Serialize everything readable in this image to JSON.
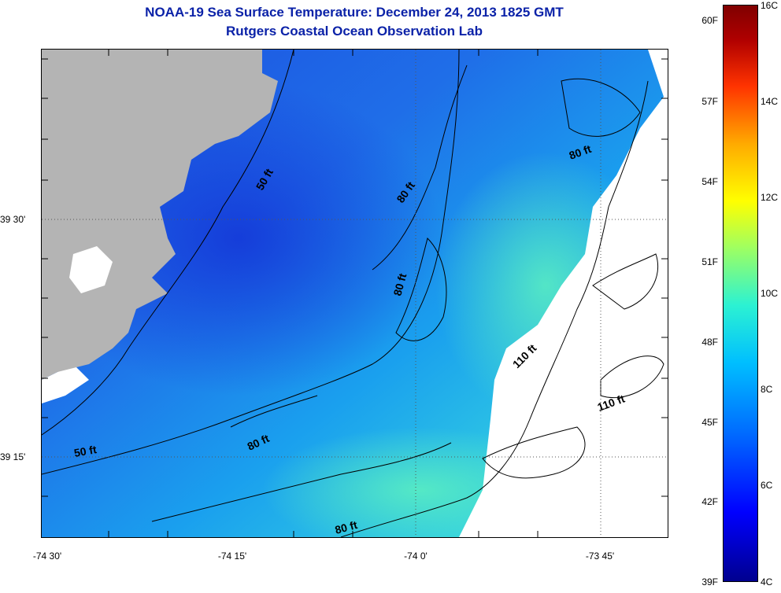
{
  "title": "NOAA-19 Sea Surface Temperature:  December 24, 2013 1825 GMT",
  "subtitle": "Rutgers Coastal Ocean Observation Lab",
  "x_ticks": [
    "-74 30'",
    "-74 15'",
    "-74 0'",
    "-73 45'"
  ],
  "y_ticks": [
    "39 30'",
    "39 15'"
  ],
  "contour_labels": [
    "50 ft",
    "80 ft",
    "80 ft",
    "80 ft",
    "80 ft",
    "110 ft",
    "110 ft",
    "50 ft",
    "80 ft"
  ],
  "colorbar": {
    "fahrenheit": [
      "60F",
      "57F",
      "54F",
      "51F",
      "48F",
      "45F",
      "42F",
      "39F"
    ],
    "celsius": [
      "16C",
      "14C",
      "12C",
      "10C",
      "8C",
      "6C",
      "4C"
    ]
  },
  "colors": {
    "title": "#0b22a8",
    "land": "#b4b4b4",
    "cloud": "#ffffff",
    "sst_cold": "#1e58e6",
    "sst_mid": "#19a8ef",
    "sst_warm": "#4ee6c8"
  }
}
